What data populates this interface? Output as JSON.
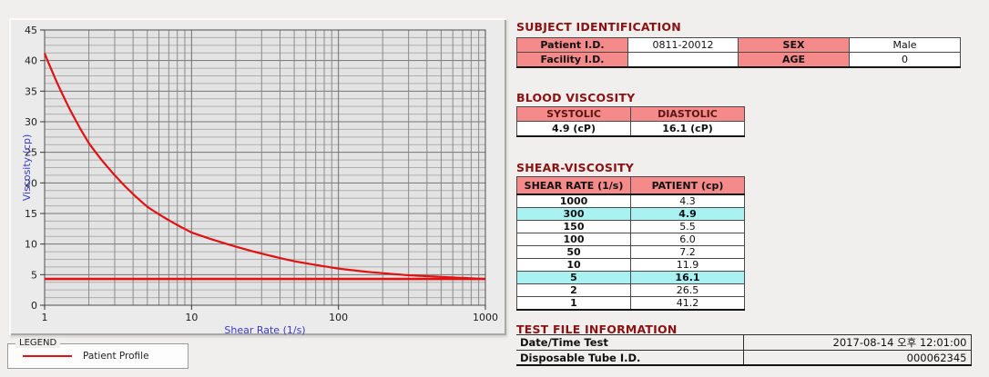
{
  "colors": {
    "heading_maroon": "#8b1212",
    "header_pink": "#f48a8a",
    "highlight_cyan": "#aaf2f2",
    "series_red": "#e01212",
    "axis_blue": "#3a3ac8"
  },
  "chart_data": {
    "type": "line",
    "title": "",
    "xlabel": "Shear Rate (1/s)",
    "ylabel": "Viscosity (cp)",
    "xscale": "log",
    "xlim": [
      1,
      1000
    ],
    "ylim": [
      0,
      45
    ],
    "x_ticks": [
      "1",
      "10",
      "100",
      "1000"
    ],
    "y_ticks": [
      0,
      5,
      10,
      15,
      20,
      25,
      30,
      35,
      40,
      45
    ],
    "grid": true,
    "x": [
      1,
      2,
      5,
      10,
      50,
      100,
      150,
      300,
      1000
    ],
    "series": [
      {
        "name": "Patient Profile",
        "values": [
          41.2,
          26.5,
          16.1,
          11.9,
          7.2,
          6.0,
          5.5,
          4.9,
          4.3
        ]
      }
    ],
    "baseline": 4.3,
    "line_color": "#e01212"
  },
  "legend": {
    "title": "LEGEND",
    "entries": [
      {
        "label": "Patient Profile",
        "color": "#e01212"
      }
    ]
  },
  "sections": {
    "subject_identification": {
      "title": "SUBJECT IDENTIFICATION",
      "patient_id_label": "Patient I.D.",
      "patient_id": "0811-20012",
      "sex_label": "SEX",
      "sex": "Male",
      "facility_id_label": "Facility I.D.",
      "facility_id": "",
      "age_label": "AGE",
      "age": "0"
    },
    "blood_viscosity": {
      "title": "BLOOD VISCOSITY",
      "systolic_label": "SYSTOLIC",
      "diastolic_label": "DIASTOLIC",
      "systolic": "4.9 (cP)",
      "diastolic": "16.1 (cP)"
    },
    "shear_viscosity": {
      "title": "SHEAR-VISCOSITY",
      "col_shear_rate": "SHEAR RATE (1/s)",
      "col_patient": "PATIENT (cp)",
      "rows": [
        {
          "rate": "1000",
          "value": "4.3",
          "highlight": false
        },
        {
          "rate": "300",
          "value": "4.9",
          "highlight": true
        },
        {
          "rate": "150",
          "value": "5.5",
          "highlight": false
        },
        {
          "rate": "100",
          "value": "6.0",
          "highlight": false
        },
        {
          "rate": "50",
          "value": "7.2",
          "highlight": false
        },
        {
          "rate": "10",
          "value": "11.9",
          "highlight": false
        },
        {
          "rate": "5",
          "value": "16.1",
          "highlight": true
        },
        {
          "rate": "2",
          "value": "26.5",
          "highlight": false
        },
        {
          "rate": "1",
          "value": "41.2",
          "highlight": false
        }
      ]
    },
    "test_file_information": {
      "title": "TEST FILE INFORMATION",
      "date_label": "Date/Time Test",
      "date": "2017-08-14  오후 12:01:00",
      "tube_label": "Disposable Tube I.D.",
      "tube": "000062345"
    }
  }
}
